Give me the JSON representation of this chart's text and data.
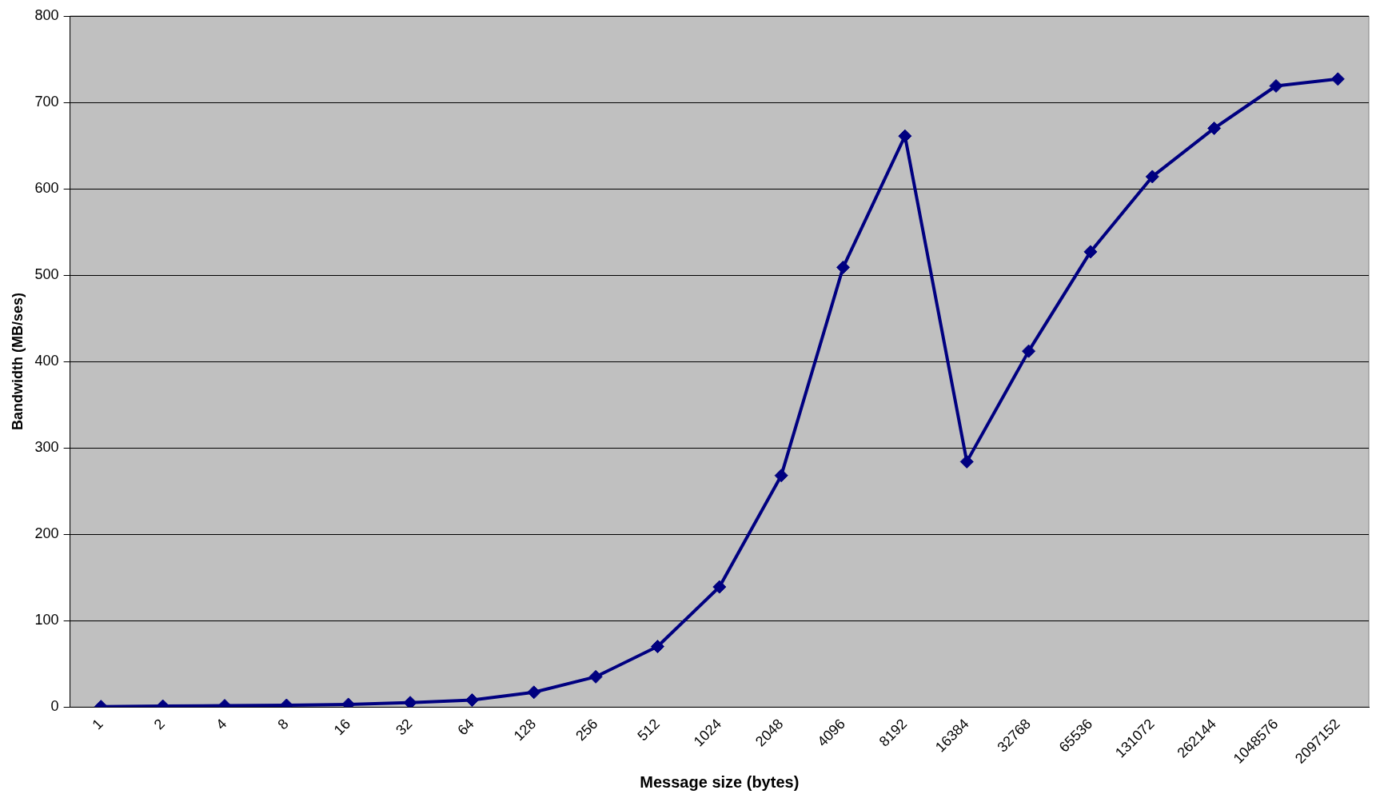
{
  "chart_data": {
    "type": "line",
    "xlabel": "Message size (bytes)",
    "ylabel": "Bandwidth (MB/ses)",
    "categories": [
      "1",
      "2",
      "4",
      "8",
      "16",
      "32",
      "64",
      "128",
      "256",
      "512",
      "1024",
      "2048",
      "4096",
      "8192",
      "16384",
      "32768",
      "65536",
      "131072",
      "262144",
      "1048576",
      "2097152"
    ],
    "series": [
      {
        "color": "#000080",
        "values": [
          0.5,
          1,
          1.5,
          2,
          3,
          5,
          8,
          17,
          35,
          70,
          139,
          268,
          509,
          661,
          284,
          412,
          527,
          614,
          670,
          719,
          727
        ]
      }
    ],
    "ylim": [
      0,
      800
    ],
    "yticks": [
      0,
      100,
      200,
      300,
      400,
      500,
      600,
      700,
      800
    ],
    "grid": "y",
    "legend": false,
    "marker": "diamond",
    "line_style": "solid"
  }
}
